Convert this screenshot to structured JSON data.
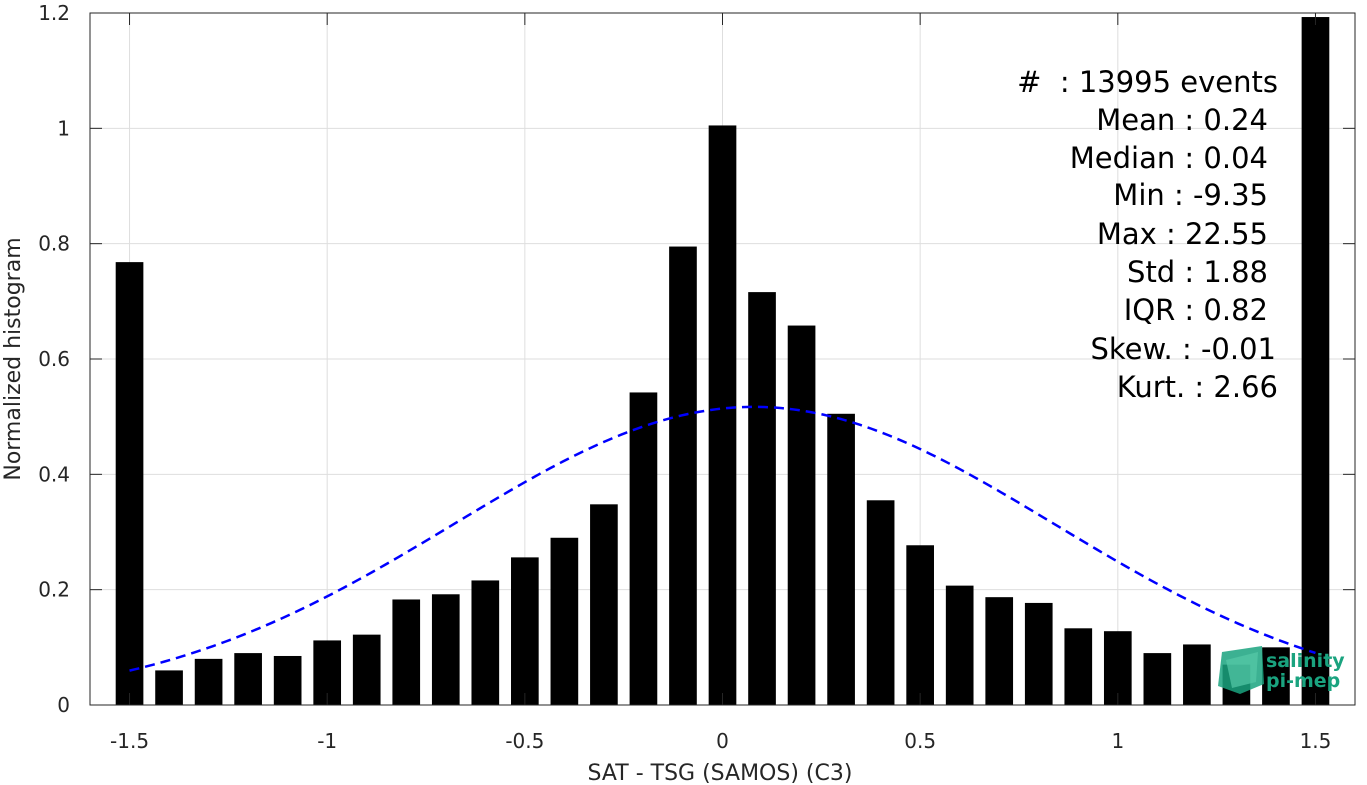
{
  "chart_data": {
    "type": "bar",
    "xlabel": "SAT - TSG (SAMOS) (C3)",
    "ylabel": "Normalized histogram",
    "xlim": [
      -1.6,
      1.6
    ],
    "ylim": [
      0,
      1.2
    ],
    "xticks": [
      -1.5,
      -1,
      -0.5,
      0,
      0.5,
      1,
      1.5
    ],
    "xtick_labels": [
      "-1.5",
      "-1",
      "-0.5",
      "0",
      "0.5",
      "1",
      "1.5"
    ],
    "yticks": [
      0,
      0.2,
      0.4,
      0.6,
      0.8,
      1,
      1.2
    ],
    "ytick_labels": [
      "0",
      "0.2",
      "0.4",
      "0.6",
      "0.8",
      "1",
      "1.2"
    ],
    "grid": true,
    "bar_width": 0.07,
    "x": [
      -1.5,
      -1.4,
      -1.3,
      -1.2,
      -1.1,
      -1.0,
      -0.9,
      -0.8,
      -0.7,
      -0.6,
      -0.5,
      -0.4,
      -0.3,
      -0.2,
      -0.1,
      0.0,
      0.1,
      0.2,
      0.3,
      0.4,
      0.5,
      0.6,
      0.7,
      0.8,
      0.9,
      1.0,
      1.1,
      1.2,
      1.3,
      1.4,
      1.5
    ],
    "values": [
      0.768,
      0.06,
      0.08,
      0.09,
      0.085,
      0.112,
      0.122,
      0.183,
      0.192,
      0.216,
      0.256,
      0.29,
      0.348,
      0.542,
      0.795,
      1.005,
      0.716,
      0.658,
      0.505,
      0.355,
      0.277,
      0.207,
      0.187,
      0.177,
      0.133,
      0.128,
      0.09,
      0.105,
      0.07,
      0.1,
      1.193
    ],
    "fit": {
      "style": "dashed",
      "color": "#0000ff",
      "mean": 0.08,
      "sigma": 0.76,
      "peak": 0.517,
      "range": [
        -1.5,
        1.5
      ]
    },
    "bar_color": "#000000"
  },
  "stats": [
    "#  : 13995 events",
    "Mean : 0.24",
    "Median : 0.04",
    "Min : -9.35",
    "Max : 22.55",
    "Std : 1.88",
    "IQR : 0.82",
    "Skew. : -0.01",
    "Kurt. : 2.66"
  ],
  "logo": {
    "line1": "salinity",
    "line2": "pi-mep",
    "color": "#1aa37f"
  }
}
